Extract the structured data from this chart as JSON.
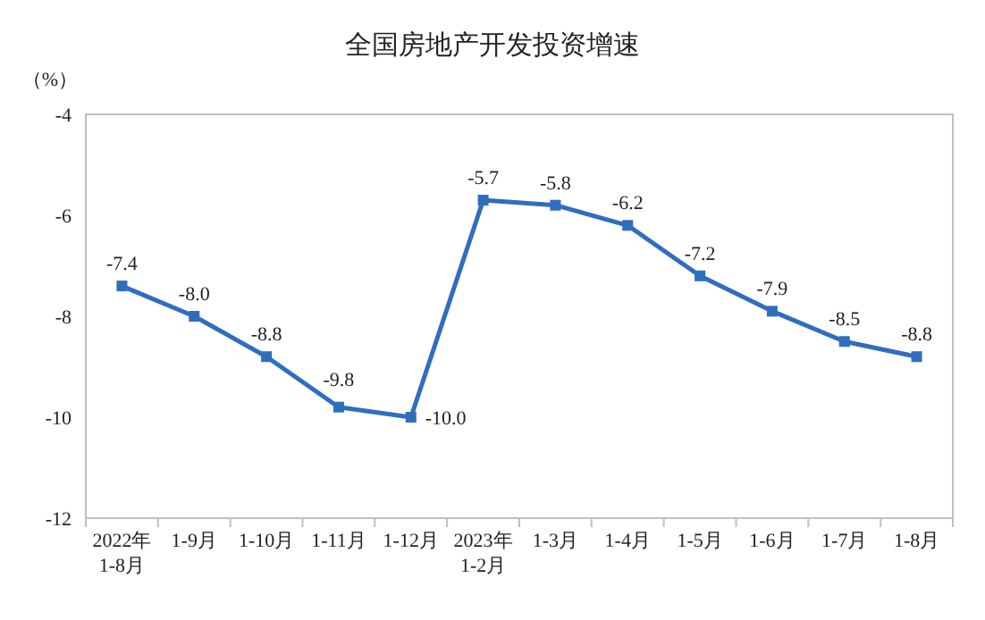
{
  "chart_data": {
    "type": "line",
    "title": "全国房地产开发投资增速",
    "ylabel": "（%）",
    "categories": [
      "2022年\n1-8月",
      "1-9月",
      "1-10月",
      "1-11月",
      "1-12月",
      "2023年\n1-2月",
      "1-3月",
      "1-4月",
      "1-5月",
      "1-6月",
      "1-7月",
      "1-8月"
    ],
    "series": [
      {
        "color": "#2f6ebf",
        "values": [
          -7.4,
          -8.0,
          -8.8,
          -9.8,
          -10.0,
          -5.7,
          -5.8,
          -6.2,
          -7.2,
          -7.9,
          -8.5,
          -8.8
        ],
        "value_labels": [
          "-7.4",
          "-8.0",
          "-8.8",
          "-9.8",
          "-10.0",
          "-5.7",
          "-5.8",
          "-6.2",
          "-7.2",
          "-7.9",
          "-8.5",
          "-8.8"
        ]
      }
    ],
    "ylim": [
      -12,
      -4
    ],
    "yticks": [
      -12,
      -10,
      -8,
      -6,
      -4
    ],
    "marker": "square",
    "line_style": "solid",
    "grid": false
  }
}
